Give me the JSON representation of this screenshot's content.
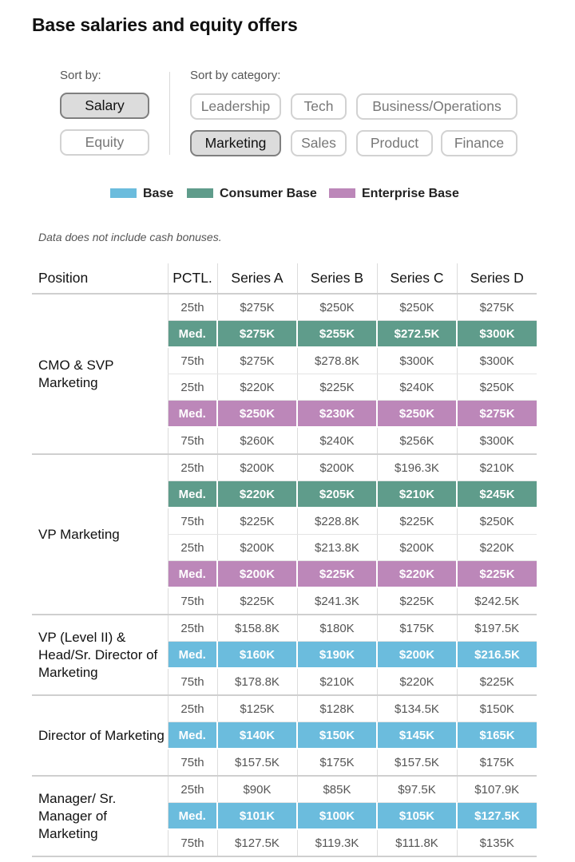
{
  "title": "Base salaries and equity offers",
  "sort": {
    "label": "Sort by:",
    "options": [
      "Salary",
      "Equity"
    ],
    "selected": "Salary"
  },
  "category": {
    "label": "Sort by category:",
    "options": [
      "Leadership",
      "Tech",
      "Business/Operations",
      "Marketing",
      "Sales",
      "Product",
      "Finance"
    ],
    "selected": "Marketing"
  },
  "legend": [
    {
      "label": "Base",
      "color": "#6bbcdd"
    },
    {
      "label": "Consumer Base",
      "color": "#5f9c8b"
    },
    {
      "label": "Enterprise Base",
      "color": "#bc87b9"
    }
  ],
  "note": "Data does not include cash bonuses.",
  "table": {
    "headers": [
      "Position",
      "PCTL.",
      "Series A",
      "Series B",
      "Series C",
      "Series D"
    ],
    "groups": [
      {
        "position": "CMO & SVP Marketing",
        "rows": [
          {
            "pctl": "25th",
            "values": [
              "$275K",
              "$250K",
              "$250K",
              "$275K"
            ],
            "highlight": "none"
          },
          {
            "pctl": "Med.",
            "values": [
              "$275K",
              "$255K",
              "$272.5K",
              "$300K"
            ],
            "highlight": "consumer"
          },
          {
            "pctl": "75th",
            "values": [
              "$275K",
              "$278.8K",
              "$300K",
              "$300K"
            ],
            "highlight": "none"
          },
          {
            "pctl": "25th",
            "values": [
              "$220K",
              "$225K",
              "$240K",
              "$250K"
            ],
            "highlight": "none"
          },
          {
            "pctl": "Med.",
            "values": [
              "$250K",
              "$230K",
              "$250K",
              "$275K"
            ],
            "highlight": "enterprise"
          },
          {
            "pctl": "75th",
            "values": [
              "$260K",
              "$240K",
              "$256K",
              "$300K"
            ],
            "highlight": "none"
          }
        ]
      },
      {
        "position": "VP Marketing",
        "rows": [
          {
            "pctl": "25th",
            "values": [
              "$200K",
              "$200K",
              "$196.3K",
              "$210K"
            ],
            "highlight": "none"
          },
          {
            "pctl": "Med.",
            "values": [
              "$220K",
              "$205K",
              "$210K",
              "$245K"
            ],
            "highlight": "consumer"
          },
          {
            "pctl": "75th",
            "values": [
              "$225K",
              "$228.8K",
              "$225K",
              "$250K"
            ],
            "highlight": "none"
          },
          {
            "pctl": "25th",
            "values": [
              "$200K",
              "$213.8K",
              "$200K",
              "$220K"
            ],
            "highlight": "none"
          },
          {
            "pctl": "Med.",
            "values": [
              "$200K",
              "$225K",
              "$220K",
              "$225K"
            ],
            "highlight": "enterprise"
          },
          {
            "pctl": "75th",
            "values": [
              "$225K",
              "$241.3K",
              "$225K",
              "$242.5K"
            ],
            "highlight": "none"
          }
        ]
      },
      {
        "position": "VP (Level II) & Head/Sr. Director of Marketing",
        "rows": [
          {
            "pctl": "25th",
            "values": [
              "$158.8K",
              "$180K",
              "$175K",
              "$197.5K"
            ],
            "highlight": "none"
          },
          {
            "pctl": "Med.",
            "values": [
              "$160K",
              "$190K",
              "$200K",
              "$216.5K"
            ],
            "highlight": "base"
          },
          {
            "pctl": "75th",
            "values": [
              "$178.8K",
              "$210K",
              "$220K",
              "$225K"
            ],
            "highlight": "none"
          }
        ]
      },
      {
        "position": "Director of Marketing",
        "rows": [
          {
            "pctl": "25th",
            "values": [
              "$125K",
              "$128K",
              "$134.5K",
              "$150K"
            ],
            "highlight": "none"
          },
          {
            "pctl": "Med.",
            "values": [
              "$140K",
              "$150K",
              "$145K",
              "$165K"
            ],
            "highlight": "base"
          },
          {
            "pctl": "75th",
            "values": [
              "$157.5K",
              "$175K",
              "$157.5K",
              "$175K"
            ],
            "highlight": "none"
          }
        ]
      },
      {
        "position": "Manager/ Sr. Manager of Marketing",
        "rows": [
          {
            "pctl": "25th",
            "values": [
              "$90K",
              "$85K",
              "$97.5K",
              "$107.9K"
            ],
            "highlight": "none"
          },
          {
            "pctl": "Med.",
            "values": [
              "$101K",
              "$100K",
              "$105K",
              "$127.5K"
            ],
            "highlight": "base"
          },
          {
            "pctl": "75th",
            "values": [
              "$127.5K",
              "$119.3K",
              "$111.8K",
              "$135K"
            ],
            "highlight": "none"
          }
        ]
      }
    ]
  }
}
